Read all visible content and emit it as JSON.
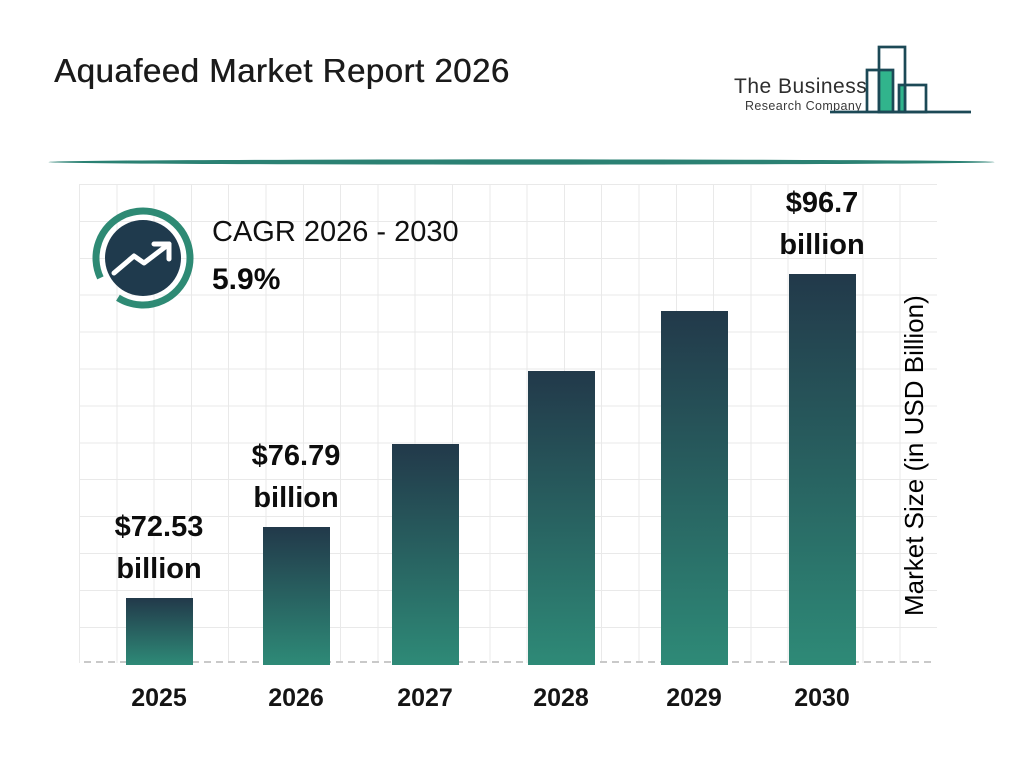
{
  "title": "Aquafeed Market Report 2026",
  "logo": {
    "line1": "The Business",
    "line2": "Research Company"
  },
  "cagr": {
    "label": "CAGR 2026 - 2030",
    "value": "5.9%"
  },
  "chart_data": {
    "type": "bar",
    "categories": [
      "2025",
      "2026",
      "2027",
      "2028",
      "2029",
      "2030"
    ],
    "values": [
      72.53,
      76.79,
      83.3,
      89.1,
      93.8,
      96.7
    ],
    "values_note": "2027-2029 estimated from bar heights; labeled values are 72.53, 76.79, 96.7",
    "bar_labels": [
      {
        "index": 0,
        "value": "$72.53",
        "unit": "billion"
      },
      {
        "index": 1,
        "value": "$76.79",
        "unit": "billion"
      },
      {
        "index": 5,
        "value": "$96.7",
        "unit": "billion"
      }
    ],
    "title": "Aquafeed Market Report 2026",
    "xlabel": "",
    "ylabel": "Market Size (in USD Billion)",
    "grid": true,
    "legend": false
  },
  "colors": {
    "bar_top": "#22394a",
    "bar_bottom": "#2e8a77",
    "divider_teal": "#2b8173",
    "badge_ring": "#2e8a74",
    "badge_navy": "#1f3a4d",
    "logo_green": "#31b48c",
    "logo_outline": "#1c4956",
    "grid_line": "#e9e9e9"
  }
}
